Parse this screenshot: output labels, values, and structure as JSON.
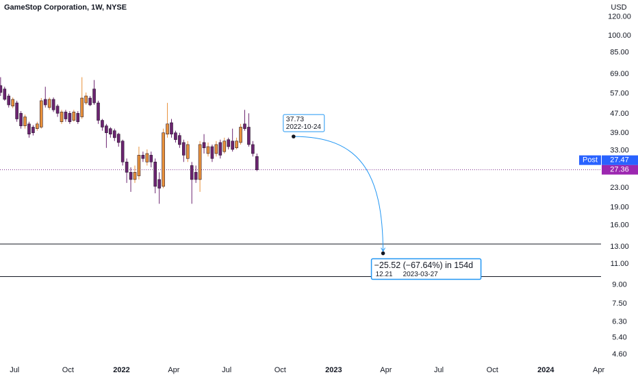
{
  "chart_data": {
    "type": "candlestick",
    "title": "GameStop Corporation, 1W, NYSE",
    "currency": "USD",
    "log_scale": true,
    "grid": false,
    "up_color": "#e8913a",
    "down_color": "#6b2470",
    "x": [
      "2021-06-07",
      "2021-06-14",
      "2021-06-21",
      "2021-06-28",
      "2021-07-05",
      "2021-07-12",
      "2021-07-19",
      "2021-07-26",
      "2021-08-02",
      "2021-08-09",
      "2021-08-16",
      "2021-08-23",
      "2021-08-30",
      "2021-09-06",
      "2021-09-13",
      "2021-09-20",
      "2021-09-27",
      "2021-10-04",
      "2021-10-11",
      "2021-10-18",
      "2021-10-25",
      "2021-11-01",
      "2021-11-08",
      "2021-11-15",
      "2021-11-22",
      "2021-11-29",
      "2021-12-06",
      "2021-12-13",
      "2021-12-20",
      "2021-12-27",
      "2022-01-03",
      "2022-01-10",
      "2022-01-17",
      "2022-01-24",
      "2022-01-31",
      "2022-02-07",
      "2022-02-14",
      "2022-02-21",
      "2022-02-28",
      "2022-03-07",
      "2022-03-14",
      "2022-03-21",
      "2022-03-28",
      "2022-04-04",
      "2022-04-11",
      "2022-04-18",
      "2022-04-25",
      "2022-05-02",
      "2022-05-09",
      "2022-05-16",
      "2022-05-23",
      "2022-05-30",
      "2022-06-06",
      "2022-06-13",
      "2022-06-20",
      "2022-06-27",
      "2022-07-04",
      "2022-07-11",
      "2022-07-18",
      "2022-07-25",
      "2022-08-01",
      "2022-08-08",
      "2022-08-15",
      "2022-08-22"
    ],
    "open": [
      61.7,
      59.7,
      55.8,
      50.6,
      52.2,
      47.2,
      41.8,
      42.6,
      41.3,
      40.7,
      41.3,
      54.0,
      49.9,
      54.0,
      50.6,
      43.5,
      47.8,
      47.2,
      44.1,
      47.2,
      45.6,
      52.2,
      54.7,
      59.7,
      52.2,
      44.1,
      41.8,
      40.7,
      39.9,
      38.6,
      36.1,
      29.5,
      26.7,
      24.9,
      25.8,
      31.5,
      29.5,
      31.5,
      29.5,
      24.9,
      23.3,
      38.6,
      43.1,
      39.1,
      38.1,
      35.6,
      30.5,
      28.5,
      26.7,
      24.9,
      35.6,
      32.0,
      34.2,
      32.0,
      35.6,
      32.6,
      36.6,
      36.1,
      33.8,
      35.6,
      42.6,
      41.3,
      34.9,
      31.1
    ],
    "high": [
      66.9,
      61.0,
      57.0,
      55.0,
      53.3,
      48.2,
      46.6,
      43.5,
      42.1,
      43.5,
      54.7,
      61.0,
      55.0,
      55.0,
      51.5,
      48.8,
      48.8,
      48.2,
      48.8,
      48.2,
      66.9,
      57.7,
      55.8,
      65.1,
      53.3,
      44.7,
      42.6,
      41.3,
      40.7,
      39.1,
      36.6,
      30.5,
      28.0,
      28.5,
      34.2,
      32.6,
      33.3,
      32.6,
      30.5,
      26.7,
      40.7,
      52.2,
      44.7,
      39.9,
      39.1,
      36.6,
      36.1,
      29.5,
      28.5,
      36.1,
      38.6,
      35.6,
      34.9,
      36.1,
      36.6,
      37.3,
      37.3,
      40.7,
      37.3,
      42.6,
      48.8,
      47.2,
      36.1,
      32.0
    ],
    "low": [
      55.8,
      53.3,
      49.9,
      49.6,
      43.5,
      40.7,
      40.7,
      37.3,
      38.1,
      39.9,
      40.7,
      49.9,
      48.8,
      47.8,
      45.6,
      42.6,
      43.5,
      42.6,
      43.5,
      42.6,
      44.7,
      51.2,
      50.6,
      51.2,
      42.6,
      39.9,
      33.8,
      37.3,
      36.1,
      34.2,
      28.5,
      24.1,
      22.1,
      24.1,
      24.9,
      29.5,
      28.5,
      28.0,
      21.8,
      19.7,
      22.9,
      37.3,
      37.3,
      35.6,
      33.8,
      29.5,
      29.5,
      19.7,
      24.1,
      22.1,
      32.0,
      31.1,
      29.5,
      31.1,
      30.5,
      32.0,
      33.3,
      32.6,
      33.3,
      34.9,
      39.9,
      34.2,
      31.1,
      27.0
    ],
    "close": [
      57.7,
      54.0,
      51.2,
      54.0,
      44.7,
      41.8,
      45.6,
      38.6,
      39.1,
      42.6,
      53.3,
      51.2,
      54.0,
      48.8,
      47.2,
      47.8,
      44.7,
      43.5,
      47.8,
      43.5,
      54.7,
      55.8,
      51.2,
      52.2,
      44.1,
      41.3,
      39.1,
      38.6,
      37.3,
      35.6,
      29.5,
      26.7,
      24.9,
      26.7,
      31.5,
      30.5,
      32.0,
      29.5,
      23.3,
      22.9,
      39.1,
      42.6,
      38.6,
      36.6,
      34.9,
      31.5,
      34.9,
      24.9,
      24.9,
      34.9,
      33.8,
      34.2,
      30.5,
      34.9,
      31.5,
      36.1,
      34.2,
      33.3,
      36.1,
      41.3,
      40.7,
      34.9,
      32.0,
      27.36
    ],
    "xlim": [
      "2021-06-06",
      "2024-04-05"
    ],
    "xticks": [
      {
        "value": "2021-07-01",
        "label": "Jul"
      },
      {
        "value": "2021-10-01",
        "label": "Oct"
      },
      {
        "value": "2022-01-01",
        "label": "2022"
      },
      {
        "value": "2022-04-01",
        "label": "Apr"
      },
      {
        "value": "2022-07-01",
        "label": "Jul"
      },
      {
        "value": "2022-10-01",
        "label": "Oct"
      },
      {
        "value": "2023-01-01",
        "label": "2023"
      },
      {
        "value": "2023-04-01",
        "label": "Apr"
      },
      {
        "value": "2023-07-01",
        "label": "Jul"
      },
      {
        "value": "2023-10-01",
        "label": "Oct"
      },
      {
        "value": "2024-01-01",
        "label": "2024"
      },
      {
        "value": "2024-04-01",
        "label": "Apr"
      }
    ],
    "ylim": [
      4.22,
      141
    ],
    "yticks": [
      {
        "value": 120,
        "label": "120.00"
      },
      {
        "value": 100,
        "label": "100.00"
      },
      {
        "value": 85,
        "label": "85.00"
      },
      {
        "value": 69,
        "label": "69.00"
      },
      {
        "value": 57,
        "label": "57.00"
      },
      {
        "value": 47,
        "label": "47.00"
      },
      {
        "value": 39,
        "label": "39.00"
      },
      {
        "value": 33,
        "label": "33.00"
      },
      {
        "value": 23,
        "label": "23.00"
      },
      {
        "value": 19,
        "label": "19.00"
      },
      {
        "value": 16,
        "label": "16.00"
      },
      {
        "value": 13,
        "label": "13.00"
      },
      {
        "value": 11,
        "label": "11.00"
      },
      {
        "value": 9,
        "label": "9.00"
      },
      {
        "value": 7.5,
        "label": "7.50"
      },
      {
        "value": 6.3,
        "label": "6.30"
      },
      {
        "value": 5.4,
        "label": "5.40"
      },
      {
        "value": 4.6,
        "label": "4.60"
      }
    ],
    "horizontal_lines": [
      13.35,
      9.75
    ],
    "last_price": 27.36,
    "post": {
      "label": "Post",
      "value": 27.47
    },
    "measure": {
      "start": {
        "value": 37.73,
        "date": "2022-10-24"
      },
      "end": {
        "value": 12.21,
        "date": "2023-03-27"
      },
      "label": "−25.52 (−67.64%) in 154d"
    }
  }
}
